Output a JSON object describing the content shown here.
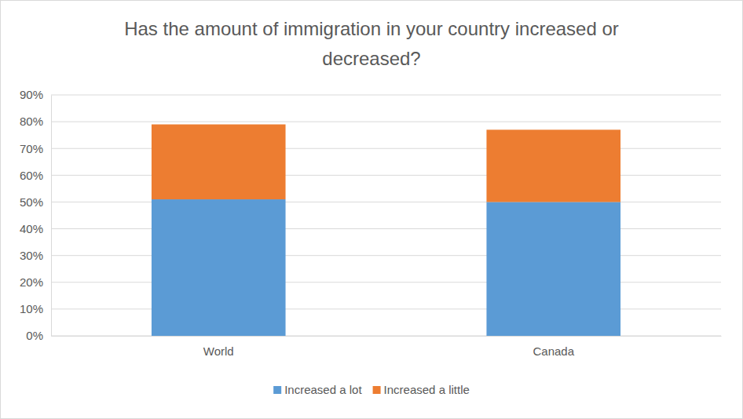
{
  "chart_data": {
    "type": "bar",
    "title": "Has the amount of immigration in your country increased or decreased?",
    "categories": [
      "World",
      "Canada"
    ],
    "series": [
      {
        "name": "Increased a lot",
        "color": "#5b9bd5",
        "values": [
          51,
          50
        ]
      },
      {
        "name": "Increased a little",
        "color": "#ed7d31",
        "values": [
          28,
          27
        ]
      }
    ],
    "ylim": [
      0,
      90
    ],
    "yticks": [
      {
        "value": 0,
        "label": "0%"
      },
      {
        "value": 10,
        "label": "10%"
      },
      {
        "value": 20,
        "label": "20%"
      },
      {
        "value": 30,
        "label": "30%"
      },
      {
        "value": 40,
        "label": "40%"
      },
      {
        "value": 50,
        "label": "50%"
      },
      {
        "value": 60,
        "label": "60%"
      },
      {
        "value": 70,
        "label": "70%"
      },
      {
        "value": 80,
        "label": "80%"
      },
      {
        "value": 90,
        "label": "90%"
      }
    ],
    "stacked": true,
    "grid": true,
    "legend": "bottom"
  }
}
